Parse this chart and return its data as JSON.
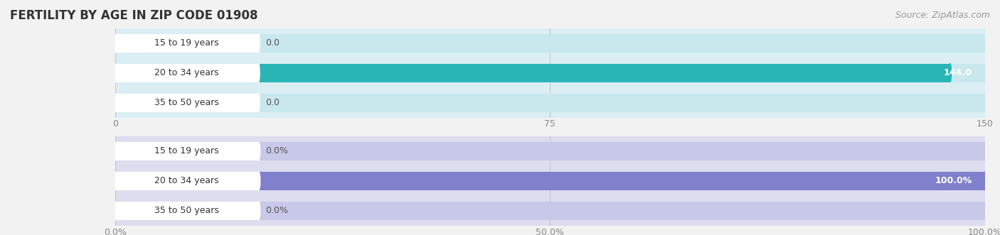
{
  "title": "FERTILITY BY AGE IN ZIP CODE 01908",
  "source": "Source: ZipAtlas.com",
  "categories": [
    "15 to 19 years",
    "20 to 34 years",
    "35 to 50 years"
  ],
  "chart1": {
    "values": [
      0.0,
      144.0,
      0.0
    ],
    "xlim": [
      0,
      150
    ],
    "xticks": [
      0.0,
      75.0,
      150.0
    ],
    "bar_color": "#29b5b5",
    "bar_bg_color": "#c8e8ed",
    "outer_bg": "#daeef3",
    "label_color_inside": "#ffffff",
    "label_color_outside": "#555555",
    "value_labels": [
      "0.0",
      "144.0",
      "0.0"
    ]
  },
  "chart2": {
    "values": [
      0.0,
      100.0,
      0.0
    ],
    "xlim": [
      0,
      100
    ],
    "xticks": [
      0.0,
      50.0,
      100.0
    ],
    "xtick_labels": [
      "0.0%",
      "50.0%",
      "100.0%"
    ],
    "bar_color": "#8080cc",
    "bar_bg_color": "#c8c8e8",
    "outer_bg": "#ddddef",
    "label_color_inside": "#ffffff",
    "label_color_outside": "#555555",
    "value_labels": [
      "0.0%",
      "100.0%",
      "0.0%"
    ]
  },
  "title_color": "#333333",
  "title_fontsize": 12,
  "source_color": "#999999",
  "source_fontsize": 9,
  "label_fontsize": 9,
  "tick_fontsize": 9,
  "background_color": "#f2f2f2"
}
